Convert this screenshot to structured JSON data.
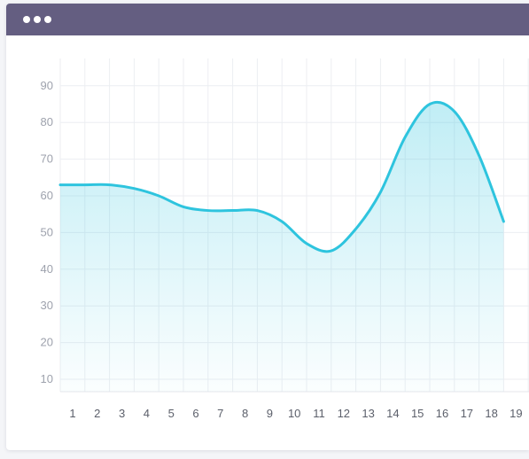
{
  "window": {
    "titlebar_dots": 3,
    "titlebar_color": "#645e81"
  },
  "chart_data": {
    "type": "area",
    "title": "",
    "xlabel": "",
    "ylabel": "",
    "x": [
      1,
      2,
      3,
      4,
      5,
      6,
      7,
      8,
      9,
      10,
      11,
      12,
      13,
      14,
      15,
      16,
      17,
      18,
      19
    ],
    "series": [
      {
        "values": [
          63,
          63,
          63,
          62,
          60,
          57,
          56,
          56,
          56,
          53,
          47,
          45,
          51,
          61,
          76,
          85,
          83,
          71,
          53
        ],
        "color": "#2ec4de"
      }
    ],
    "yticks": [
      10,
      20,
      30,
      40,
      50,
      60,
      70,
      80,
      90
    ],
    "ylim": [
      7,
      100
    ],
    "grid": true,
    "legend": "none"
  }
}
